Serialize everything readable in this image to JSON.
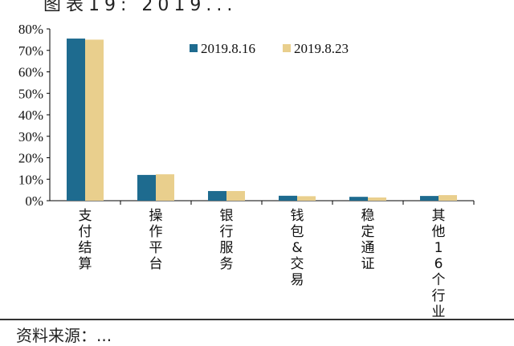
{
  "header_fragment": "图表19: 2019...",
  "footer_fragment": "资料来源：...",
  "chart_data": {
    "type": "bar",
    "categories": [
      "支付结算",
      "操作平台",
      "银行服务",
      "钱包&交易",
      "稳定通证",
      "其他16个行业"
    ],
    "series": [
      {
        "name": "2019.8.16",
        "color": "#1e6b8f",
        "values": [
          75.5,
          12,
          4.5,
          2.3,
          1.8,
          2.2
        ]
      },
      {
        "name": "2019.8.23",
        "color": "#e9cf8d",
        "values": [
          75,
          12.3,
          4.5,
          2.1,
          1.5,
          2.6
        ]
      }
    ],
    "yticks": [
      "0%",
      "10%",
      "20%",
      "30%",
      "40%",
      "50%",
      "60%",
      "70%",
      "80%"
    ],
    "ylim": [
      0,
      80
    ],
    "legend_position": "top-right",
    "grid": false
  }
}
